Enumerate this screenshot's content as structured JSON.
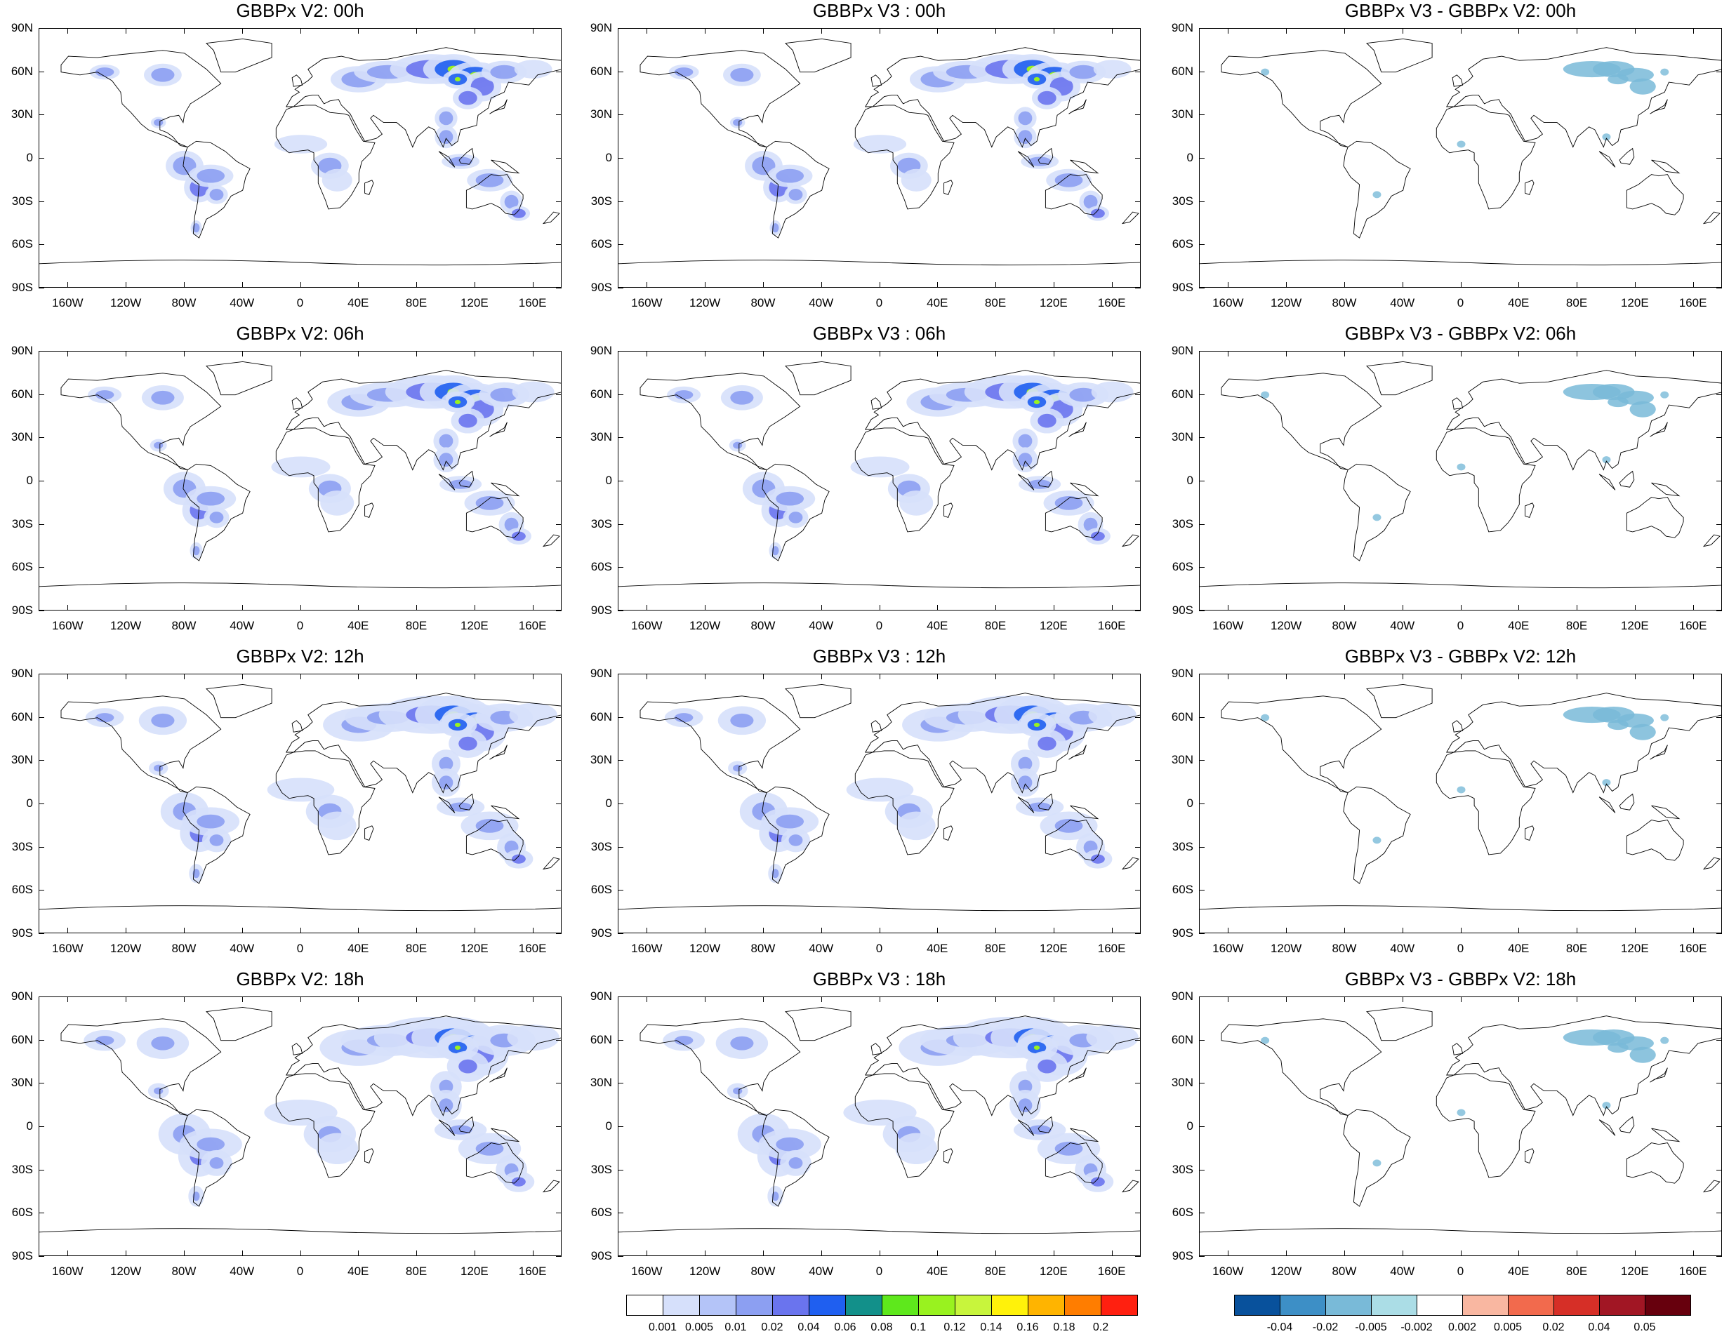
{
  "panels": [
    {
      "title": "GBBPx V2: 00h",
      "kind": "abs",
      "hour": "00"
    },
    {
      "title": "GBBPx V3 : 00h",
      "kind": "abs",
      "hour": "00"
    },
    {
      "title": "GBBPx V3 - GBBPx V2: 00h",
      "kind": "diff",
      "hour": "00"
    },
    {
      "title": "GBBPx V2: 06h",
      "kind": "abs",
      "hour": "06"
    },
    {
      "title": "GBBPx V3 : 06h",
      "kind": "abs",
      "hour": "06"
    },
    {
      "title": "GBBPx V3 - GBBPx V2: 06h",
      "kind": "diff",
      "hour": "06"
    },
    {
      "title": "GBBPx V2: 12h",
      "kind": "abs",
      "hour": "12"
    },
    {
      "title": "GBBPx V3 : 12h",
      "kind": "abs",
      "hour": "12"
    },
    {
      "title": "GBBPx V3 - GBBPx V2: 12h",
      "kind": "diff",
      "hour": "12"
    },
    {
      "title": "GBBPx V2: 18h",
      "kind": "abs",
      "hour": "18"
    },
    {
      "title": "GBBPx V3 : 18h",
      "kind": "abs",
      "hour": "18"
    },
    {
      "title": "GBBPx V3 - GBBPx V2: 18h",
      "kind": "diff",
      "hour": "18"
    }
  ],
  "lat_labels": [
    "90N",
    "60N",
    "30N",
    "0",
    "30S",
    "60S",
    "90S"
  ],
  "lon_labels": [
    "160W",
    "120W",
    "80W",
    "40W",
    "0",
    "40E",
    "80E",
    "120E",
    "160E"
  ],
  "colorbar_abs": {
    "labels": [
      "0.001",
      "0.005",
      "0.01",
      "0.02",
      "0.04",
      "0.06",
      "0.08",
      "0.1",
      "0.12",
      "0.14",
      "0.16",
      "0.18",
      "0.2"
    ],
    "colors": [
      "#ffffff",
      "#d6e0fb",
      "#b4c4f8",
      "#8c9ff2",
      "#6a74ee",
      "#1f5ff0",
      "#12908a",
      "#5ee81c",
      "#99f21f",
      "#c8f53c",
      "#fff20a",
      "#ffb400",
      "#ff7d00",
      "#ff2010"
    ]
  },
  "colorbar_diff": {
    "labels": [
      "-0.04",
      "-0.02",
      "-0.005",
      "-0.002",
      "0.002",
      "0.005",
      "0.02",
      "0.04",
      "0.05"
    ],
    "colors": [
      "#08519c",
      "#3d8fc6",
      "#79bad8",
      "#abdde6",
      "#ffffff",
      "#f9b7a1",
      "#f26a4d",
      "#d62f27",
      "#a11624",
      "#67000d"
    ]
  }
}
